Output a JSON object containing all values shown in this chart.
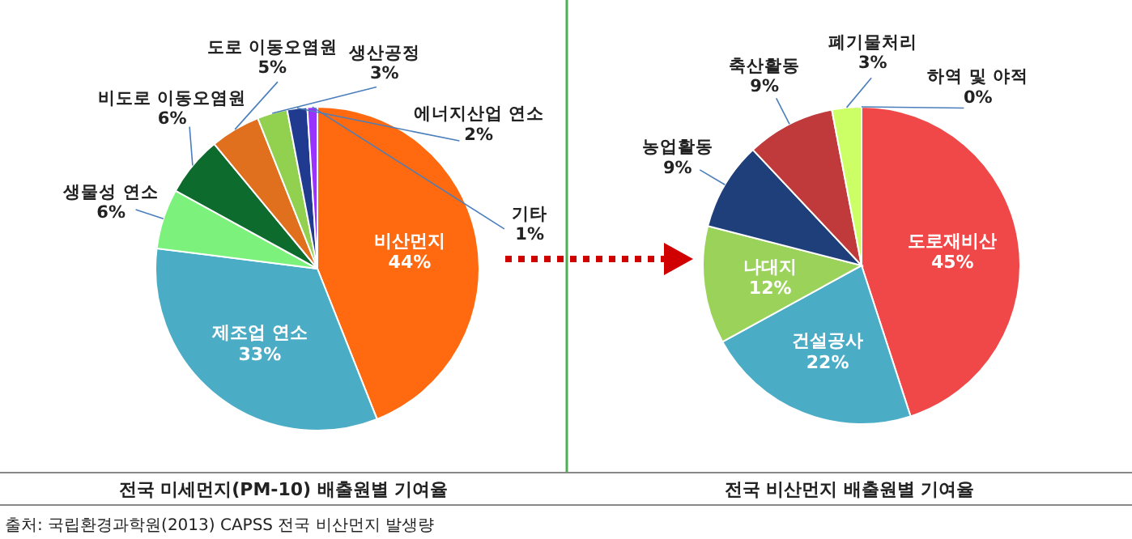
{
  "chart_data": [
    {
      "type": "pie",
      "title": "전국 미세먼지(PM-10) 배출원별 기여율",
      "categories": [
        "비산먼지",
        "제조업 연소",
        "생물성 연소",
        "비도로 이동오염원",
        "도로 이동오염원",
        "생산공정",
        "에너지산업 연소",
        "기타"
      ],
      "values": [
        44,
        33,
        6,
        6,
        5,
        3,
        2,
        1
      ],
      "value_labels": [
        "44%",
        "33%",
        "6%",
        "6%",
        "5%",
        "3%",
        "2%",
        "1%"
      ],
      "colors": [
        "#ff6a10",
        "#4bacc6",
        "#7cf27c",
        "#0e6b2e",
        "#e0701e",
        "#92d050",
        "#1f3a8f",
        "#9933ff"
      ],
      "annotations": [
        "출처: 국립환경과학원(2013) CAPSS 전국 비산먼지 발생량"
      ]
    },
    {
      "type": "pie",
      "title": "전국 비산먼지 배출원별 기여율",
      "categories": [
        "도로재비산",
        "건설공사",
        "나대지",
        "농업활동",
        "축산활동",
        "폐기물처리",
        "하역 및 야적"
      ],
      "values": [
        45,
        22,
        12,
        9,
        9,
        3,
        0
      ],
      "value_labels": [
        "45%",
        "22%",
        "12%",
        "9%",
        "9%",
        "3%",
        "0%"
      ],
      "colors": [
        "#f04848",
        "#4bacc6",
        "#9bd35a",
        "#1f3f7a",
        "#c0393b",
        "#ccff66",
        "#e8e8e8"
      ]
    }
  ]
}
